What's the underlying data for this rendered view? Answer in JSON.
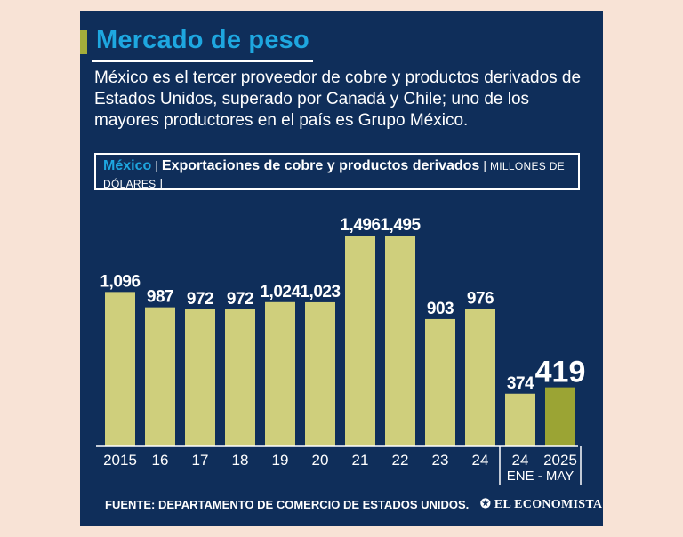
{
  "title": "Mercado de peso",
  "subtitle": "México es el tercer proveedor de cobre y productos derivados de Estados Unidos, superado por Canadá y Chile; uno de los mayores productores en el país es Grupo México.",
  "chart_header": {
    "country": "México",
    "main": "Exportaciones de cobre y productos derivados",
    "unit": "MILLONES DE DÓLARES"
  },
  "source": "FUENTE: DEPARTAMENTO DE COMERCIO DE ESTADOS UNIDOS.",
  "logo": "EL ECONOMISTA",
  "colors": {
    "background": "#0f2e5a",
    "bar": "#cfcf7c",
    "bar_highlight": "#9ba434",
    "title": "#1ea7e0"
  },
  "chart_data": {
    "type": "bar",
    "title": "Exportaciones de cobre y productos derivados",
    "ylabel": "MILLONES DE DÓLARES",
    "categories": [
      "2015",
      "16",
      "17",
      "18",
      "19",
      "20",
      "21",
      "22",
      "23",
      "24",
      "24",
      "2025"
    ],
    "values": [
      1096,
      987,
      972,
      972,
      1024,
      1023,
      1496,
      1495,
      903,
      976,
      374,
      419
    ],
    "value_labels": [
      "1,096",
      "987",
      "972",
      "972",
      "1,024",
      "1,023",
      "1,496",
      "1,495",
      "903",
      "976",
      "374",
      "419"
    ],
    "highlight_index": 11,
    "group_label": "ENE - MAY",
    "group_range": [
      10,
      11
    ],
    "ylim": [
      0,
      1500
    ],
    "grid": false,
    "legend": "none"
  }
}
